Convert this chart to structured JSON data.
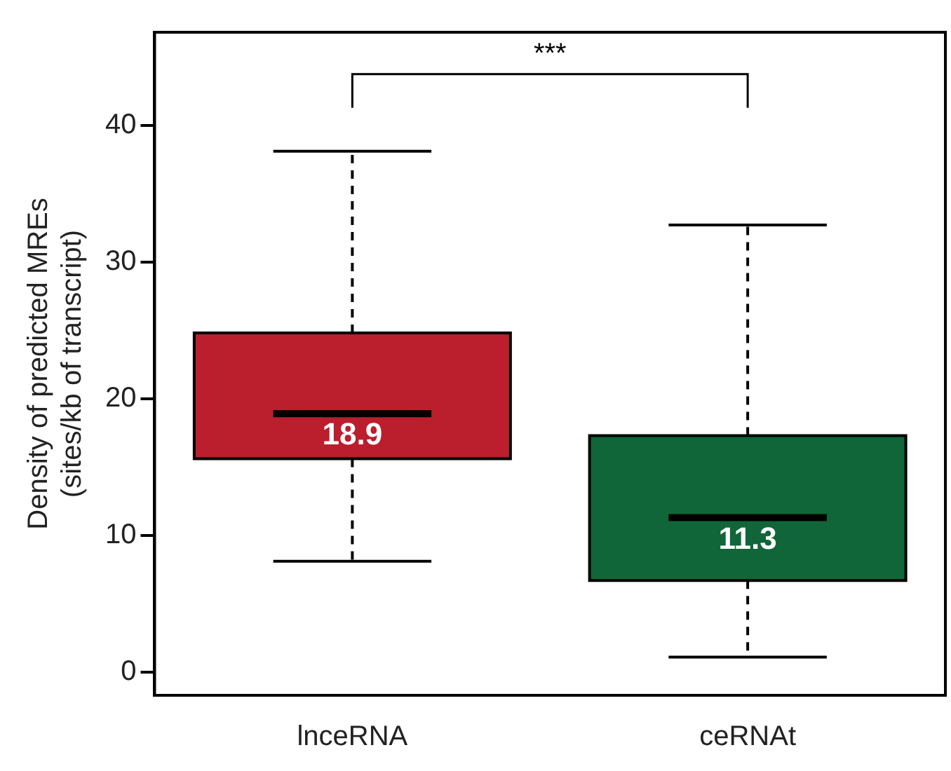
{
  "chart_data": {
    "type": "box",
    "categories": [
      "lnceRNA",
      "ceRNAt"
    ],
    "ylabel": "Density of predicted MREs\n(sites/kb of transcript)",
    "colors": [
      "#bb1e2d",
      "#106638"
    ],
    "boxes": [
      {
        "low": 8.1,
        "q1": 15.6,
        "median": 18.9,
        "q3": 24.8,
        "high": 38.1
      },
      {
        "low": 1.1,
        "q1": 6.7,
        "median": 11.3,
        "q3": 17.3,
        "high": 32.7
      }
    ],
    "value_labels": [
      "18.9",
      "11.3"
    ],
    "annotations": [
      "***"
    ],
    "ylim": [
      -1.7,
      46.8
    ],
    "yticks": [
      0,
      10,
      20,
      30,
      40
    ],
    "grid": false,
    "legend": false
  }
}
